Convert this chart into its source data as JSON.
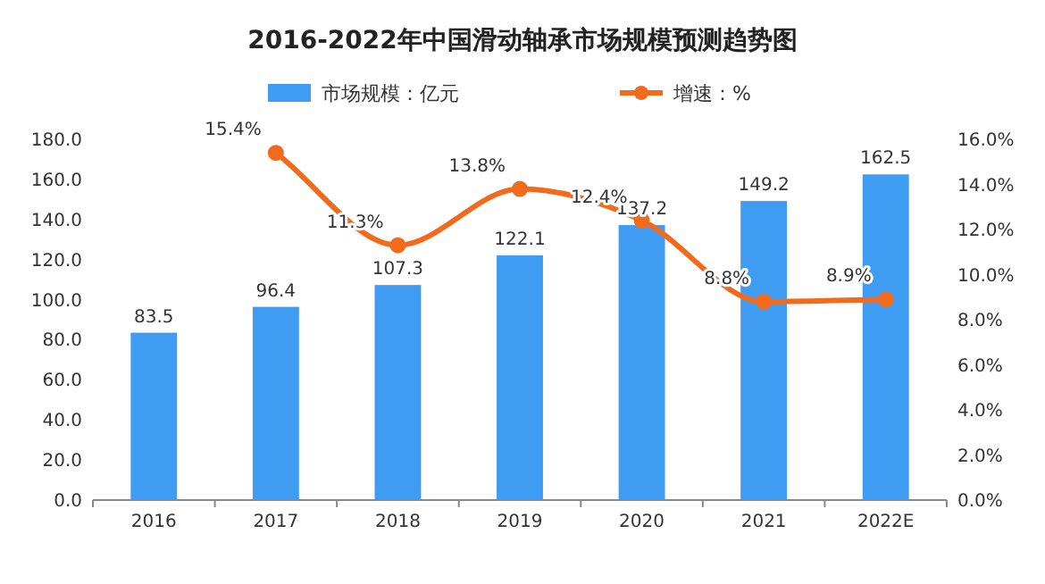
{
  "chart_data": {
    "type": "bar",
    "title": "2016-2022年中国滑动轴承市场规模预测趋势图",
    "categories": [
      "2016",
      "2017",
      "2018",
      "2019",
      "2020",
      "2021",
      "2022E"
    ],
    "series": [
      {
        "name": "市场规模：亿元",
        "color": "#3f9cf3",
        "values": [
          83.5,
          96.4,
          107.3,
          122.1,
          137.2,
          149.2,
          162.5
        ],
        "value_labels": [
          "83.5",
          "96.4",
          "107.3",
          "122.1",
          "137.2",
          "149.2",
          "162.5"
        ]
      },
      {
        "name": "增速：%",
        "type": "line",
        "axis": "y2",
        "color": "#f26b1d",
        "marker": "circle",
        "values": [
          null,
          15.4,
          11.3,
          13.8,
          12.4,
          8.8,
          8.9
        ],
        "value_labels": [
          null,
          "15.4%",
          "11.3%",
          "13.8%",
          "12.4%",
          "8.8%",
          "8.9%"
        ]
      }
    ],
    "ylim": [
      0,
      180
    ],
    "yticks": [
      {
        "value": 0,
        "label": "0.0"
      },
      {
        "value": 20,
        "label": "20.0"
      },
      {
        "value": 40,
        "label": "40.0"
      },
      {
        "value": 60,
        "label": "60.0"
      },
      {
        "value": 80,
        "label": "80.0"
      },
      {
        "value": 100,
        "label": "100.0"
      },
      {
        "value": 120,
        "label": "120.0"
      },
      {
        "value": 140,
        "label": "140.0"
      },
      {
        "value": 160,
        "label": "160.0"
      },
      {
        "value": 180,
        "label": "180.0"
      }
    ],
    "y2lim": [
      0,
      16
    ],
    "y2ticks": [
      {
        "value": 0,
        "label": "0.0%"
      },
      {
        "value": 2,
        "label": "2.0%"
      },
      {
        "value": 4,
        "label": "4.0%"
      },
      {
        "value": 6,
        "label": "6.0%"
      },
      {
        "value": 8,
        "label": "8.0%"
      },
      {
        "value": 10,
        "label": "10.0%"
      },
      {
        "value": 12,
        "label": "12.0%"
      },
      {
        "value": 14,
        "label": "14.0%"
      },
      {
        "value": 16,
        "label": "16.0%"
      }
    ],
    "legend": "top"
  }
}
